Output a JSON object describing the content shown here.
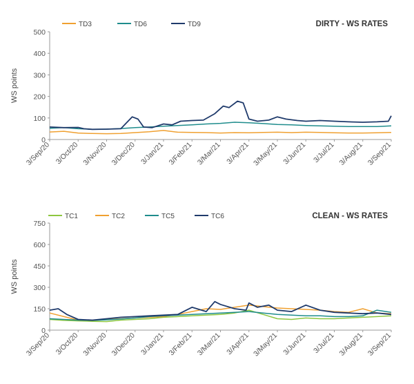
{
  "chart_data": [
    {
      "type": "line",
      "title": "DIRTY - WS RATES",
      "ylabel": "WS points",
      "ylim": [
        0,
        500
      ],
      "yticks": [
        0,
        100,
        200,
        300,
        400,
        500
      ],
      "xticklabels": [
        "3/Sep/20",
        "3/Oct/20",
        "3/Nov/20",
        "3/Dec/20",
        "3/Jan/21",
        "3/Feb/21",
        "3/Mar/21",
        "3/Apr/21",
        "3/May/21",
        "3/Jun/21",
        "3/Jul/21",
        "3/Aug/21",
        "3/Sep/21"
      ],
      "legend": [
        "TD3",
        "TD6",
        "TD9"
      ],
      "series": [
        {
          "name": "TD3",
          "color": "#F0A030",
          "x": [
            0,
            0.5,
            1,
            1.5,
            2,
            2.5,
            3,
            3.5,
            4,
            4.5,
            5,
            5.5,
            6,
            6.5,
            7,
            7.5,
            8,
            8.5,
            9,
            9.5,
            10,
            10.5,
            11,
            11.5,
            12
          ],
          "values": [
            35,
            38,
            30,
            28,
            27,
            28,
            32,
            36,
            42,
            34,
            33,
            32,
            30,
            32,
            31,
            33,
            34,
            32,
            34,
            33,
            31,
            30,
            30,
            31,
            33
          ]
        },
        {
          "name": "TD6",
          "color": "#1E8C8C",
          "x": [
            0,
            0.5,
            1,
            1.5,
            2,
            2.5,
            3,
            3.5,
            4,
            4.5,
            5,
            5.5,
            6,
            6.5,
            7,
            7.5,
            8,
            8.5,
            9,
            9.5,
            10,
            10.5,
            11,
            11.5,
            12
          ],
          "values": [
            52,
            55,
            50,
            47,
            48,
            51,
            55,
            58,
            62,
            65,
            68,
            72,
            75,
            80,
            78,
            74,
            70,
            68,
            65,
            63,
            62,
            60,
            60,
            60,
            63
          ]
        },
        {
          "name": "TD9",
          "color": "#1F3A6B",
          "x": [
            0,
            0.5,
            1,
            1.2,
            1.5,
            2,
            2.5,
            2.9,
            3.1,
            3.3,
            3.6,
            4,
            4.3,
            4.6,
            5,
            5.4,
            5.8,
            6.1,
            6.3,
            6.6,
            6.8,
            7,
            7.3,
            7.7,
            8,
            8.3,
            8.7,
            9,
            9.5,
            10,
            10.5,
            11,
            11.5,
            11.9,
            12
          ],
          "values": [
            58,
            55,
            56,
            50,
            47,
            48,
            50,
            105,
            95,
            58,
            55,
            72,
            68,
            85,
            88,
            90,
            120,
            155,
            148,
            178,
            170,
            95,
            85,
            90,
            105,
            95,
            88,
            85,
            88,
            85,
            82,
            80,
            82,
            85,
            110
          ]
        }
      ]
    },
    {
      "type": "line",
      "title": "CLEAN - WS RATES",
      "ylabel": "WS points",
      "ylim": [
        0,
        750
      ],
      "yticks": [
        0,
        150,
        300,
        450,
        600,
        750
      ],
      "xticklabels": [
        "3/Sep/20",
        "3/Oct/20",
        "3/Nov/20",
        "3/Dec/20",
        "3/Jan/21",
        "3/Feb/21",
        "3/Mar/21",
        "3/Apr/21",
        "3/May/21",
        "3/Jun/21",
        "3/Jul/21",
        "3/Aug/21",
        "3/Sep/21"
      ],
      "legend": [
        "TC1",
        "TC2",
        "TC5",
        "TC6"
      ],
      "series": [
        {
          "name": "TC1",
          "color": "#8DC63F",
          "x": [
            0,
            0.5,
            1,
            1.5,
            2,
            2.5,
            3,
            3.5,
            4,
            4.5,
            5,
            5.5,
            6,
            6.5,
            7,
            7.5,
            8,
            8.5,
            9,
            9.5,
            10,
            10.5,
            11,
            11.5,
            12
          ],
          "values": [
            75,
            68,
            65,
            62,
            60,
            70,
            75,
            80,
            90,
            95,
            100,
            105,
            110,
            120,
            140,
            110,
            80,
            75,
            85,
            80,
            80,
            85,
            90,
            95,
            100
          ]
        },
        {
          "name": "TC2",
          "color": "#F0A030",
          "x": [
            0,
            0.5,
            1,
            1.5,
            2,
            2.5,
            3,
            3.5,
            4,
            4.5,
            5,
            5.5,
            6,
            6.5,
            7,
            7.5,
            8,
            8.5,
            9,
            9.5,
            10,
            10.5,
            11,
            11.5,
            12
          ],
          "values": [
            120,
            95,
            70,
            68,
            75,
            80,
            85,
            90,
            95,
            110,
            130,
            150,
            145,
            160,
            175,
            165,
            155,
            150,
            145,
            140,
            130,
            125,
            150,
            120,
            115
          ]
        },
        {
          "name": "TC5",
          "color": "#1E8C8C",
          "x": [
            0,
            0.5,
            1,
            1.5,
            2,
            2.5,
            3,
            3.5,
            4,
            4.5,
            5,
            5.5,
            6,
            6.5,
            7,
            7.5,
            8,
            8.5,
            9,
            9.5,
            10,
            10.5,
            11,
            11.5,
            12
          ],
          "values": [
            80,
            75,
            70,
            68,
            72,
            78,
            85,
            95,
            100,
            105,
            110,
            115,
            120,
            125,
            130,
            120,
            110,
            105,
            100,
            100,
            95,
            95,
            100,
            140,
            125
          ]
        },
        {
          "name": "TC6",
          "color": "#1F3A6B",
          "x": [
            0,
            0.3,
            0.6,
            1,
            1.5,
            2,
            2.5,
            3,
            3.5,
            4,
            4.5,
            5,
            5.5,
            5.8,
            6,
            6.5,
            6.9,
            7,
            7.3,
            7.7,
            8,
            8.5,
            9,
            9.5,
            10,
            10.5,
            11,
            11.5,
            12
          ],
          "values": [
            140,
            150,
            110,
            75,
            70,
            80,
            90,
            95,
            100,
            105,
            110,
            160,
            130,
            200,
            180,
            150,
            140,
            190,
            160,
            175,
            140,
            130,
            175,
            140,
            125,
            120,
            115,
            120,
            110
          ]
        }
      ]
    }
  ]
}
